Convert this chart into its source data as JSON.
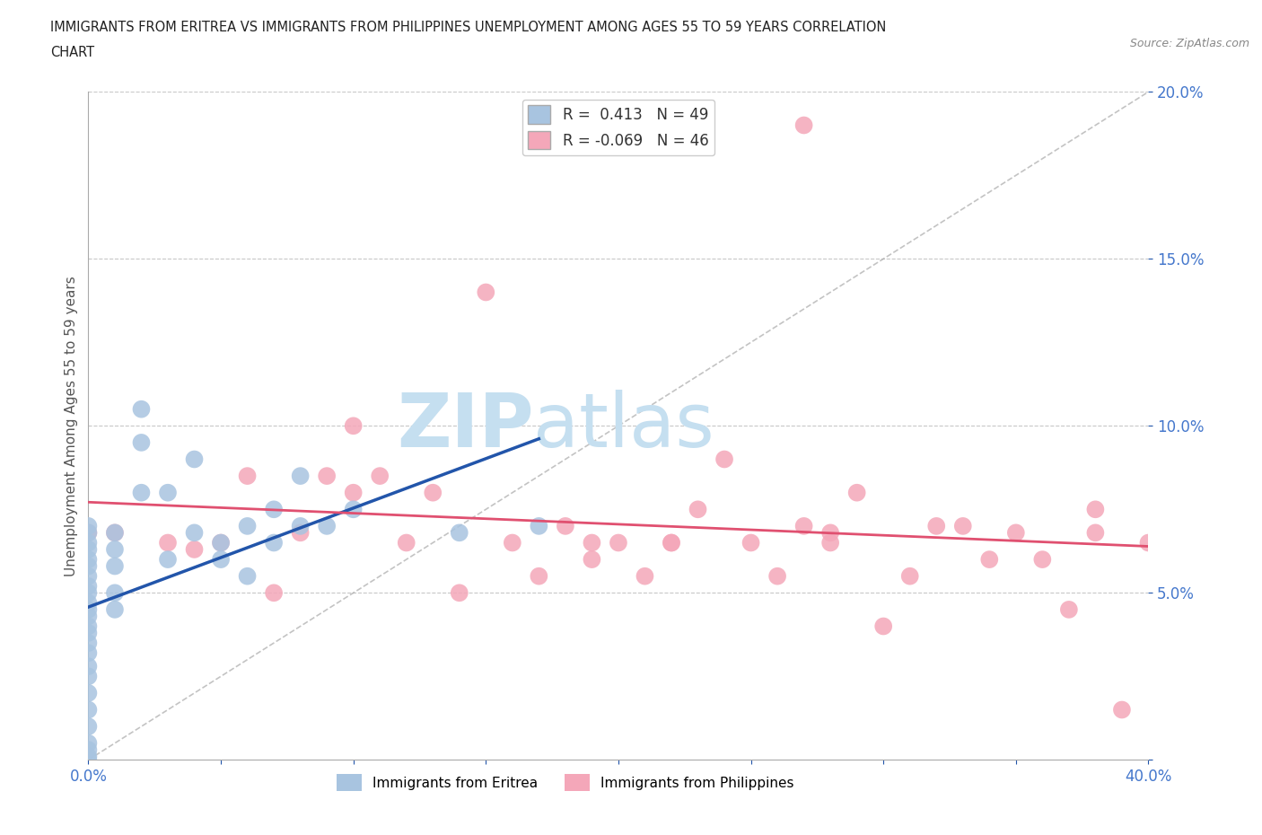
{
  "title_line1": "IMMIGRANTS FROM ERITREA VS IMMIGRANTS FROM PHILIPPINES UNEMPLOYMENT AMONG AGES 55 TO 59 YEARS CORRELATION",
  "title_line2": "CHART",
  "source_text": "Source: ZipAtlas.com",
  "ylabel": "Unemployment Among Ages 55 to 59 years",
  "xlim": [
    0.0,
    0.4
  ],
  "ylim": [
    0.0,
    0.2
  ],
  "xticks": [
    0.0,
    0.05,
    0.1,
    0.15,
    0.2,
    0.25,
    0.3,
    0.35,
    0.4
  ],
  "xticklabels": [
    "0.0%",
    "",
    "",
    "",
    "",
    "",
    "",
    "",
    "40.0%"
  ],
  "yticks": [
    0.0,
    0.05,
    0.1,
    0.15,
    0.2
  ],
  "yticklabels": [
    "",
    "5.0%",
    "10.0%",
    "15.0%",
    "20.0%"
  ],
  "R_eritrea": 0.413,
  "N_eritrea": 49,
  "R_philippines": -0.069,
  "N_philippines": 46,
  "eritrea_color": "#a8c4e0",
  "philippines_color": "#f4a7b9",
  "eritrea_line_color": "#2255aa",
  "philippines_line_color": "#e05070",
  "background_color": "#ffffff",
  "grid_color": "#c8c8c8",
  "watermark_zip": "ZIP",
  "watermark_atlas": "atlas",
  "watermark_color_zip": "#c5dff0",
  "watermark_color_atlas": "#c5dff0",
  "legend_label_eritrea": "Immigrants from Eritrea",
  "legend_label_philippines": "Immigrants from Philippines",
  "eritrea_scatter_x": [
    0.0,
    0.0,
    0.0,
    0.0,
    0.0,
    0.0,
    0.0,
    0.0,
    0.0,
    0.0,
    0.0,
    0.0,
    0.0,
    0.0,
    0.0,
    0.0,
    0.0,
    0.0,
    0.0,
    0.0,
    0.0,
    0.0,
    0.0,
    0.0,
    0.0,
    0.01,
    0.01,
    0.01,
    0.01,
    0.01,
    0.02,
    0.02,
    0.02,
    0.03,
    0.03,
    0.04,
    0.04,
    0.05,
    0.05,
    0.06,
    0.06,
    0.07,
    0.07,
    0.08,
    0.08,
    0.09,
    0.1,
    0.14,
    0.17
  ],
  "eritrea_scatter_y": [
    0.07,
    0.068,
    0.065,
    0.063,
    0.06,
    0.058,
    0.055,
    0.052,
    0.05,
    0.047,
    0.045,
    0.043,
    0.04,
    0.038,
    0.035,
    0.032,
    0.028,
    0.025,
    0.02,
    0.015,
    0.01,
    0.005,
    0.003,
    0.001,
    0.0,
    0.068,
    0.063,
    0.058,
    0.05,
    0.045,
    0.105,
    0.095,
    0.08,
    0.08,
    0.06,
    0.09,
    0.068,
    0.065,
    0.06,
    0.07,
    0.055,
    0.075,
    0.065,
    0.085,
    0.07,
    0.07,
    0.075,
    0.068,
    0.07
  ],
  "philippines_scatter_x": [
    0.0,
    0.01,
    0.03,
    0.04,
    0.05,
    0.06,
    0.07,
    0.08,
    0.09,
    0.1,
    0.1,
    0.11,
    0.12,
    0.13,
    0.14,
    0.15,
    0.16,
    0.17,
    0.18,
    0.19,
    0.2,
    0.21,
    0.22,
    0.23,
    0.24,
    0.25,
    0.26,
    0.27,
    0.28,
    0.28,
    0.29,
    0.3,
    0.31,
    0.32,
    0.33,
    0.34,
    0.35,
    0.36,
    0.37,
    0.38,
    0.38,
    0.39,
    0.4,
    0.27,
    0.22,
    0.19
  ],
  "philippines_scatter_y": [
    0.068,
    0.068,
    0.065,
    0.063,
    0.065,
    0.085,
    0.05,
    0.068,
    0.085,
    0.08,
    0.1,
    0.085,
    0.065,
    0.08,
    0.05,
    0.14,
    0.065,
    0.055,
    0.07,
    0.06,
    0.065,
    0.055,
    0.065,
    0.075,
    0.09,
    0.065,
    0.055,
    0.19,
    0.065,
    0.068,
    0.08,
    0.04,
    0.055,
    0.07,
    0.07,
    0.06,
    0.068,
    0.06,
    0.045,
    0.075,
    0.068,
    0.015,
    0.065,
    0.07,
    0.065,
    0.065
  ]
}
